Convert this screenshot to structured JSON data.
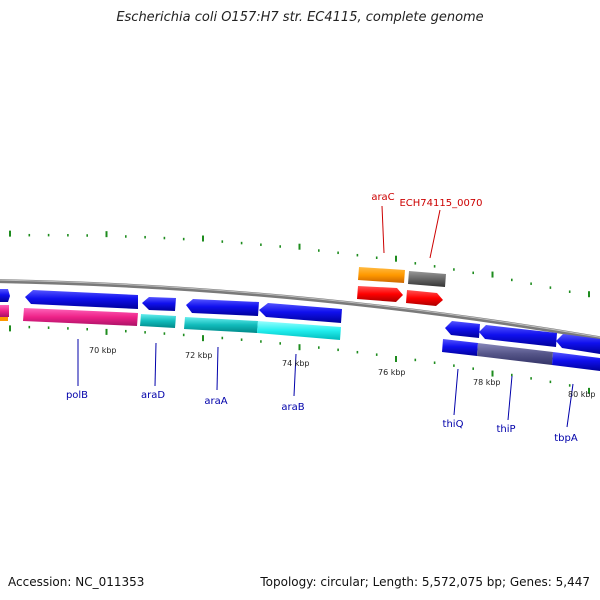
{
  "title": "Escherichia coli O157:H7 str. EC4115, complete genome",
  "footer": {
    "accession": "Accession: NC_011353",
    "summary": "Topology: circular; Length: 5,572,075 bp; Genes: 5,447"
  },
  "colors": {
    "backbone": "#808080",
    "tick": "#1e8c1e",
    "gene_label": "#0000aa",
    "highlight_label": "#cc0000"
  },
  "scale_labels": [
    {
      "kbp": 70,
      "text": "70 kbp"
    },
    {
      "kbp": 72,
      "text": "72 kbp"
    },
    {
      "kbp": 74,
      "text": "74 kbp"
    },
    {
      "kbp": 76,
      "text": "76 kbp"
    },
    {
      "kbp": 78,
      "text": "78 kbp"
    },
    {
      "kbp": 80,
      "text": "80 kbp"
    }
  ],
  "gene_labels": [
    {
      "name": "polB"
    },
    {
      "name": "araD"
    },
    {
      "name": "araA"
    },
    {
      "name": "araB"
    },
    {
      "name": "thiQ"
    },
    {
      "name": "thiP"
    },
    {
      "name": "tbpA"
    }
  ],
  "highlight_labels": [
    {
      "name": "araC"
    },
    {
      "name": "ECH74115_0070"
    }
  ]
}
